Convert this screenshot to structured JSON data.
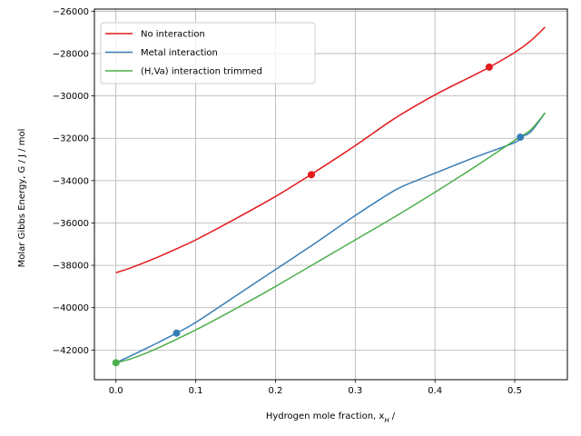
{
  "chart_data": {
    "type": "line",
    "title": "",
    "xlabel": "Hydrogen mole fraction, x",
    "xlabel_sub": "H",
    "xlabel_suffix": " /",
    "ylabel": "Molar Gibbs Energy, G / J / mol",
    "xlim": [
      -0.027,
      0.566
    ],
    "ylim": [
      -43400,
      -25900
    ],
    "xticks": [
      0.0,
      0.1,
      0.2,
      0.3,
      0.4,
      0.5
    ],
    "xtick_labels": [
      "0.0",
      "0.1",
      "0.2",
      "0.3",
      "0.4",
      "0.5"
    ],
    "yticks": [
      -42000,
      -40000,
      -38000,
      -36000,
      -34000,
      -32000,
      -30000,
      -28000,
      -26000
    ],
    "ytick_labels": [
      "−42000",
      "−40000",
      "−38000",
      "−36000",
      "−34000",
      "−32000",
      "−30000",
      "−28000",
      "−26000"
    ],
    "grid": true,
    "legend_position": "top-left",
    "series": [
      {
        "name": "No interaction",
        "color": "#e41a1c",
        "x": [
          0.0,
          0.02,
          0.05,
          0.08,
          0.1,
          0.15,
          0.2,
          0.245,
          0.3,
          0.35,
          0.4,
          0.45,
          0.468,
          0.5,
          0.52,
          0.538
        ],
        "y": [
          -38350,
          -38100,
          -37650,
          -37150,
          -36800,
          -35800,
          -34750,
          -33700,
          -32350,
          -31050,
          -29950,
          -29000,
          -28650,
          -27950,
          -27400,
          -26750
        ],
        "markers": [
          [
            0.245,
            -33720
          ],
          [
            0.468,
            -28640
          ]
        ]
      },
      {
        "name": "Metal interaction",
        "color": "#377eb8",
        "x": [
          0.0,
          0.02,
          0.05,
          0.076,
          0.1,
          0.15,
          0.2,
          0.25,
          0.3,
          0.35,
          0.38,
          0.4,
          0.45,
          0.5,
          0.507,
          0.52,
          0.538
        ],
        "y": [
          -42600,
          -42250,
          -41700,
          -41200,
          -40700,
          -39450,
          -38200,
          -36950,
          -35650,
          -34450,
          -33950,
          -33650,
          -32900,
          -32200,
          -31950,
          -31700,
          -30800
        ],
        "markers": [
          [
            0.076,
            -41200
          ],
          [
            0.507,
            -31950
          ]
        ]
      },
      {
        "name": "(H,Va) interaction trimmed",
        "color": "#4daf4a",
        "x": [
          0.0,
          0.02,
          0.05,
          0.1,
          0.15,
          0.2,
          0.25,
          0.3,
          0.35,
          0.4,
          0.45,
          0.5,
          0.52,
          0.538
        ],
        "y": [
          -42600,
          -42400,
          -41950,
          -41050,
          -40050,
          -39000,
          -37900,
          -36800,
          -35700,
          -34550,
          -33350,
          -32100,
          -31600,
          -30800
        ],
        "markers": [
          [
            0.0,
            -42600
          ]
        ]
      }
    ]
  }
}
